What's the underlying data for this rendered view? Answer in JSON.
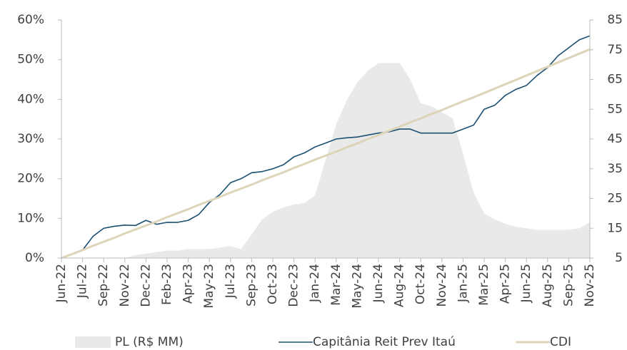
{
  "chart_data": {
    "type": "line",
    "categories": [
      "Jun-22",
      null,
      "Jul-22",
      null,
      "Sep-22",
      null,
      "Nov-22",
      null,
      "Dec-22",
      null,
      "Feb-23",
      null,
      "Apr-23",
      null,
      "May-23",
      null,
      "Jul-23",
      null,
      "Sep-23",
      null,
      "Oct-23",
      null,
      "Dec-23",
      null,
      "Jan-24",
      null,
      "Mar-24",
      null,
      "May-24",
      null,
      "Jun-24",
      null,
      "Aug-24",
      null,
      "Oct-24",
      null,
      "Nov-24",
      null,
      "Jan-25",
      null,
      "Mar-25",
      null,
      "Apr-25",
      null,
      "Jun-25",
      null,
      "Aug-25",
      null,
      "Sep-25",
      null,
      "Nov-25"
    ],
    "series": [
      {
        "name": "PL (R$ MM)",
        "color": "#e9e9e9",
        "axis": "y2",
        "kind": "area",
        "values": [
          5,
          5,
          5,
          5,
          5,
          5,
          5,
          6,
          6.5,
          7,
          7.5,
          7.5,
          8,
          8,
          8,
          8.5,
          9,
          8,
          13,
          18,
          20.5,
          22,
          23,
          23.5,
          26,
          38,
          50,
          58,
          64,
          68,
          70.5,
          70.5,
          70.5,
          65,
          57,
          56,
          54,
          52,
          40,
          27,
          20,
          18,
          16.5,
          15.5,
          15,
          14.5,
          14.5,
          14.5,
          14.5,
          15,
          17
        ]
      },
      {
        "name": "Capitânia Reit Prev Itaú",
        "color": "#1b4f72",
        "kind": "line",
        "values": [
          0,
          1,
          2,
          5.5,
          7.5,
          8,
          8.3,
          8.2,
          9.5,
          8.5,
          9,
          9,
          9.5,
          11,
          14,
          16,
          19,
          20,
          21.5,
          21.8,
          22.5,
          23.5,
          25.5,
          26.5,
          28,
          29,
          30,
          30.3,
          30.5,
          31,
          31.5,
          31.8,
          32.5,
          32.5,
          31.5,
          31.5,
          31.5,
          31.5,
          32.5,
          33.5,
          37.5,
          38.5,
          41,
          42.5,
          43.5,
          46,
          48,
          51,
          53,
          55,
          56
        ]
      },
      {
        "name": "CDI",
        "color": "#ddd4ba",
        "kind": "line",
        "values": [
          0,
          1,
          2,
          3.1,
          4.1,
          5.1,
          6.2,
          7.2,
          8.2,
          9.2,
          10.3,
          11.3,
          12.3,
          13.4,
          14.4,
          15.4,
          16.5,
          17.5,
          18.5,
          19.6,
          20.6,
          21.6,
          22.7,
          23.7,
          24.8,
          25.8,
          26.8,
          27.9,
          28.9,
          30,
          31,
          32.1,
          33.1,
          34.2,
          35.2,
          36.3,
          37.3,
          38.4,
          39.5,
          40.5,
          41.6,
          42.7,
          43.8,
          44.9,
          46,
          47.1,
          48.2,
          49.3,
          50.4,
          51.5,
          52.6
        ]
      }
    ],
    "ylim": [
      0,
      60
    ],
    "yticks": [
      {
        "value": 0,
        "label": "0%"
      },
      {
        "value": 10,
        "label": "10%"
      },
      {
        "value": 20,
        "label": "20%"
      },
      {
        "value": 30,
        "label": "30%"
      },
      {
        "value": 40,
        "label": "40%"
      },
      {
        "value": 50,
        "label": "50%"
      },
      {
        "value": 60,
        "label": "60%"
      }
    ],
    "y2lim": [
      5,
      85
    ],
    "y2ticks": [
      5,
      15,
      25,
      35,
      45,
      55,
      65,
      75,
      85
    ],
    "legend": "bottom"
  }
}
